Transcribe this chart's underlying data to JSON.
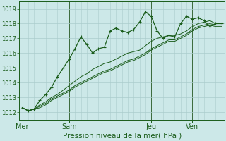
{
  "title": "Pression niveau de la mer( hPa )",
  "bg_color": "#cce8e8",
  "grid_color": "#aacccc",
  "line_color": "#1a5c1a",
  "ylim": [
    1011.5,
    1019.5
  ],
  "yticks": [
    1012,
    1013,
    1014,
    1015,
    1016,
    1017,
    1018,
    1019
  ],
  "day_labels": [
    "Mer",
    "Sam",
    "Jeu",
    "Ven"
  ],
  "day_positions": [
    0,
    8,
    22,
    29
  ],
  "n_points": 35,
  "series1": [
    1012.3,
    1012.1,
    1012.2,
    1012.8,
    1013.2,
    1013.7,
    1014.4,
    1015.0,
    1015.6,
    1016.3,
    1017.1,
    1016.6,
    1016.0,
    1016.3,
    1016.4,
    1017.5,
    1017.7,
    1017.5,
    1017.4,
    1017.6,
    1018.1,
    1018.8,
    1018.5,
    1017.5,
    1017.0,
    1017.2,
    1017.1,
    1018.0,
    1018.5,
    1018.3,
    1018.4,
    1018.2,
    1017.8,
    1018.0,
    1018.0
  ],
  "series2": [
    1012.3,
    1012.1,
    1012.2,
    1012.5,
    1012.7,
    1013.0,
    1013.2,
    1013.5,
    1013.8,
    1014.1,
    1014.4,
    1014.6,
    1014.9,
    1015.1,
    1015.3,
    1015.4,
    1015.6,
    1015.8,
    1016.0,
    1016.1,
    1016.2,
    1016.5,
    1016.8,
    1017.0,
    1017.1,
    1017.2,
    1017.2,
    1017.3,
    1017.5,
    1017.8,
    1018.0,
    1018.1,
    1018.2,
    1018.0,
    1018.0
  ],
  "series3": [
    1012.3,
    1012.1,
    1012.2,
    1012.4,
    1012.6,
    1012.9,
    1013.1,
    1013.3,
    1013.5,
    1013.8,
    1014.0,
    1014.2,
    1014.4,
    1014.6,
    1014.8,
    1014.9,
    1015.1,
    1015.3,
    1015.5,
    1015.6,
    1015.8,
    1016.0,
    1016.3,
    1016.5,
    1016.7,
    1016.9,
    1016.9,
    1017.1,
    1017.3,
    1017.6,
    1017.8,
    1017.9,
    1018.0,
    1017.9,
    1017.9
  ],
  "series4": [
    1012.3,
    1012.1,
    1012.2,
    1012.3,
    1012.5,
    1012.8,
    1013.0,
    1013.2,
    1013.4,
    1013.7,
    1013.9,
    1014.1,
    1014.3,
    1014.5,
    1014.7,
    1014.8,
    1015.0,
    1015.2,
    1015.4,
    1015.5,
    1015.7,
    1015.9,
    1016.2,
    1016.4,
    1016.6,
    1016.8,
    1016.8,
    1017.0,
    1017.2,
    1017.5,
    1017.7,
    1017.8,
    1017.9,
    1017.8,
    1017.8
  ]
}
